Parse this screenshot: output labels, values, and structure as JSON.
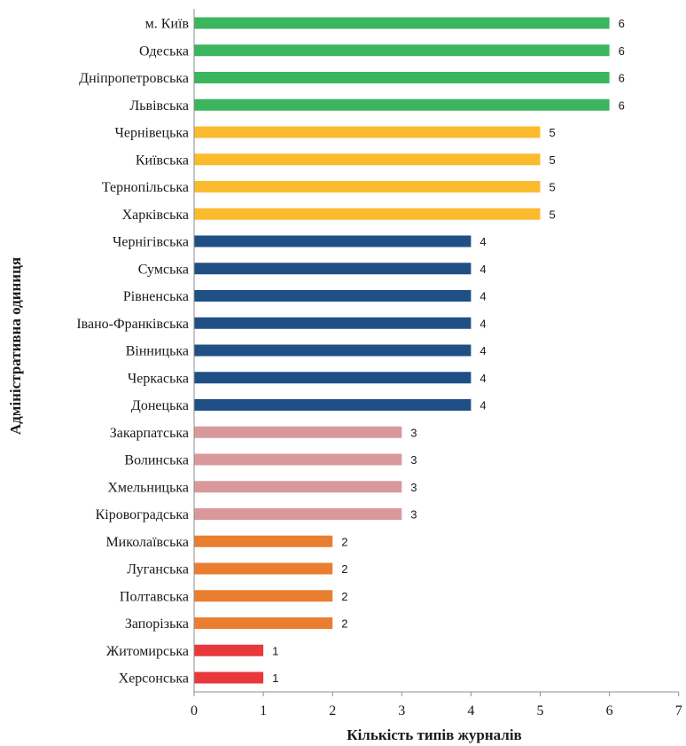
{
  "chart_data": {
    "type": "bar",
    "orientation": "horizontal",
    "categories": [
      "м. Київ",
      "Одеська",
      "Дніпропетровська",
      "Львівська",
      "Чернівецька",
      "Київська",
      "Тернопільська",
      "Харківська",
      "Чернігівська",
      "Сумська",
      "Рівненська",
      "Івано-Франківська",
      "Вінницька",
      "Черкаська",
      "Донецька",
      "Закарпатська",
      "Волинська",
      "Хмельницька",
      "Кіровоградська",
      "Миколаївська",
      "Луганська",
      "Полтавська",
      "Запорізька",
      "Житомирська",
      "Херсонська"
    ],
    "values": [
      6,
      6,
      6,
      6,
      5,
      5,
      5,
      5,
      4,
      4,
      4,
      4,
      4,
      4,
      4,
      3,
      3,
      3,
      3,
      2,
      2,
      2,
      2,
      1,
      1
    ],
    "xlabel": "Кількість типів журналів",
    "ylabel": "Адміністративна одиниця",
    "xlim": [
      0,
      7
    ],
    "xticks": [
      "0",
      "1",
      "2",
      "3",
      "4",
      "5",
      "6",
      "7"
    ],
    "grid": false,
    "data_labels": true,
    "colors_by_value": {
      "6": "#3bb55e",
      "5": "#fbbb2e",
      "4": "#1f4f85",
      "3": "#d9999b",
      "2": "#ea7e30",
      "1": "#e8383b"
    }
  }
}
